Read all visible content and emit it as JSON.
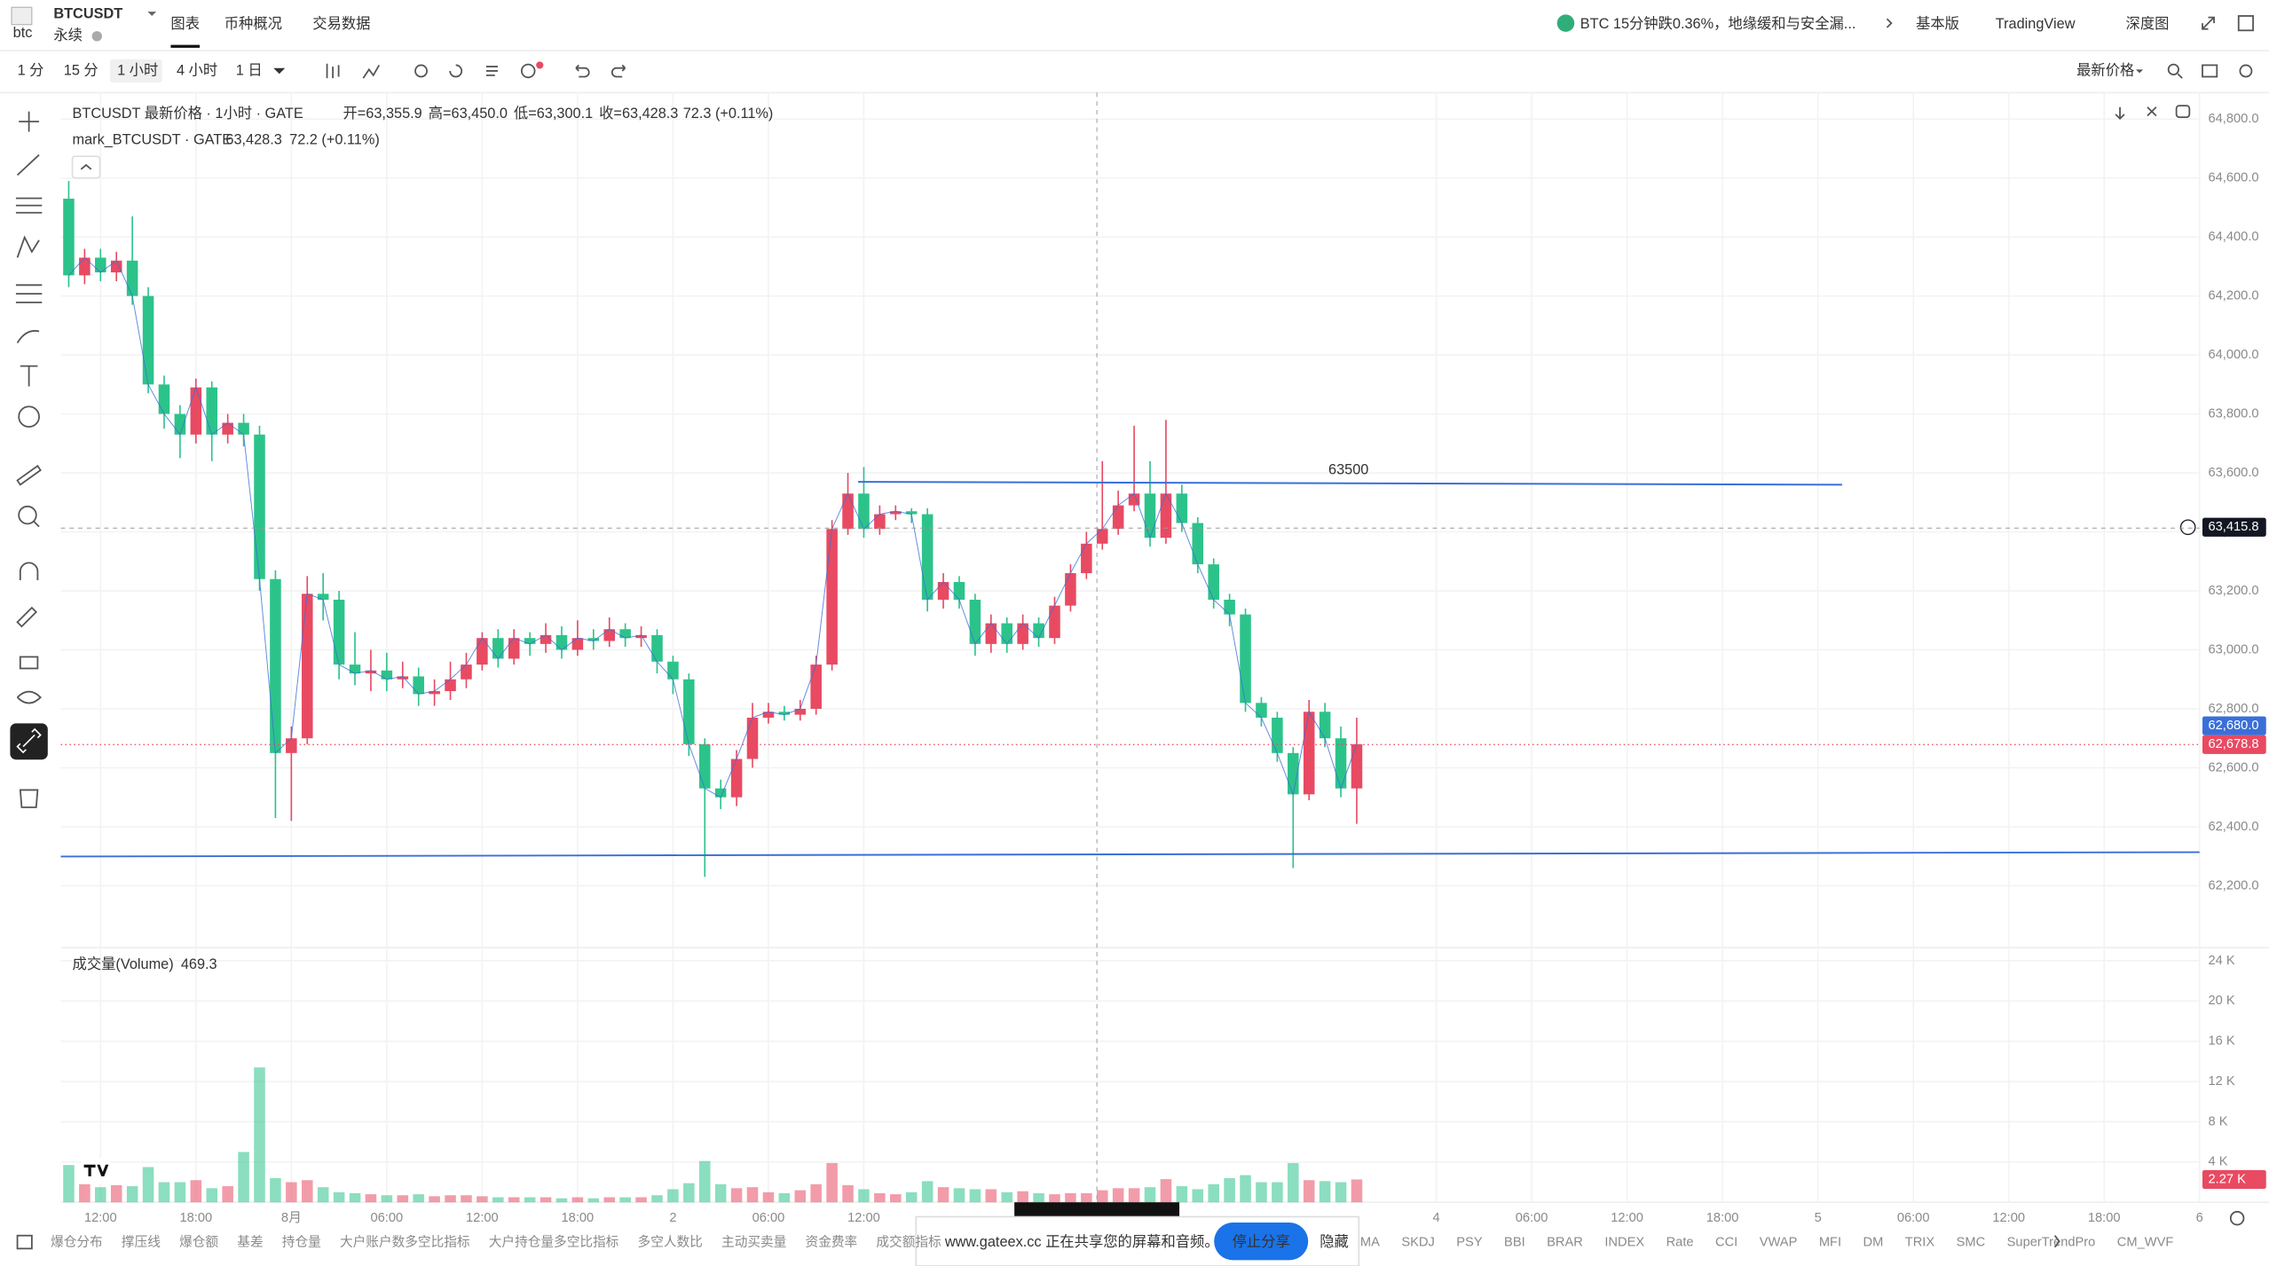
{
  "header": {
    "logo_alt": "btc",
    "symbol": "BTCUSDT",
    "contract": "永续",
    "tabs": [
      "图表",
      "币种概况",
      "交易数据"
    ],
    "news": "BTC 15分钟跌0.36%，地缘缓和与安全漏...",
    "modes": [
      "基本版",
      "TradingView",
      "深度图"
    ]
  },
  "toolbar": {
    "intervals": [
      "1 分",
      "15 分",
      "1 小时",
      "4 小时",
      "1 日"
    ],
    "price_type": "最新价格"
  },
  "legend": {
    "main": "BTCUSDT 最新价格 · 1小时 · GATE",
    "ohlc_texts": [
      "开=63,355.9",
      "高=63,450.0",
      "低=63,300.1",
      "收=63,428.3"
    ],
    "change": "72.3 (+0.11%)",
    "mark": "mark_BTCUSDT · GATE",
    "mark_price": "63,428.3",
    "mark_change": "72.2 (+0.11%)",
    "volume_title": "成交量(Volume)",
    "volume_value": "469.3"
  },
  "annotations": [
    "63500"
  ],
  "chart_data": {
    "type": "candlestick",
    "up_color": "#e84a62",
    "down_color": "#2cc38a",
    "grid": true,
    "xlim": [
      -0.5,
      134
    ],
    "xticks": [
      {
        "value": 2,
        "label": "12:00"
      },
      {
        "value": 8,
        "label": "18:00"
      },
      {
        "value": 14,
        "label": "8月"
      },
      {
        "value": 20,
        "label": "06:00"
      },
      {
        "value": 26,
        "label": "12:00"
      },
      {
        "value": 32,
        "label": "18:00"
      },
      {
        "value": 38,
        "label": "2"
      },
      {
        "value": 44,
        "label": "06:00"
      },
      {
        "value": 50,
        "label": "12:00"
      },
      {
        "value": 86,
        "label": "4"
      },
      {
        "value": 92,
        "label": "06:00"
      },
      {
        "value": 98,
        "label": "12:00"
      },
      {
        "value": 104,
        "label": "18:00"
      },
      {
        "value": 110,
        "label": "5"
      },
      {
        "value": 116,
        "label": "06:00"
      },
      {
        "value": 122,
        "label": "12:00"
      },
      {
        "value": 128,
        "label": "18:00"
      },
      {
        "value": 134,
        "label": "6"
      }
    ],
    "ylim": [
      61990,
      64870
    ],
    "yticks": [
      {
        "value": 62200,
        "label": "62,200.0"
      },
      {
        "value": 62400,
        "label": "62,400.0"
      },
      {
        "value": 62600,
        "label": "62,600.0"
      },
      {
        "value": 62800,
        "label": "62,800.0"
      },
      {
        "value": 63000,
        "label": "63,000.0"
      },
      {
        "value": 63200,
        "label": "63,200.0"
      },
      {
        "value": 63400,
        "label": "63,400.0"
      },
      {
        "value": 63600,
        "label": "63,600.0"
      },
      {
        "value": 63800,
        "label": "63,800.0"
      },
      {
        "value": 64000,
        "label": "64,000.0"
      },
      {
        "value": 64200,
        "label": "64,200.0"
      },
      {
        "value": 64400,
        "label": "64,400.0"
      },
      {
        "value": 64600,
        "label": "64,600.0"
      },
      {
        "value": 64800,
        "label": "64,800.0"
      }
    ],
    "y2lim": [
      0,
      25300
    ],
    "y2ticks": [
      {
        "value": 4000,
        "label": "4 K"
      },
      {
        "value": 8000,
        "label": "8 K"
      },
      {
        "value": 12000,
        "label": "12 K"
      },
      {
        "value": 16000,
        "label": "16 K"
      },
      {
        "value": 20000,
        "label": "20 K"
      },
      {
        "value": 24000,
        "label": "24 K"
      }
    ],
    "crosshair_price": {
      "value": 63415.8,
      "label": "63,415.8"
    },
    "mark_price": {
      "value": 62680.0,
      "label": "62,680.0"
    },
    "last_price": {
      "value": 62678.8,
      "label": "62,678.8"
    },
    "last_volume": {
      "value": 2270,
      "label": "2.27 K"
    },
    "ohlc": [
      [
        64530,
        64590,
        64230,
        64270
      ],
      [
        64270,
        64360,
        64240,
        64330
      ],
      [
        64330,
        64360,
        64250,
        64280
      ],
      [
        64280,
        64350,
        64250,
        64320
      ],
      [
        64320,
        64470,
        64170,
        64200
      ],
      [
        64200,
        64230,
        63870,
        63900
      ],
      [
        63900,
        63930,
        63750,
        63800
      ],
      [
        63800,
        63830,
        63650,
        63730
      ],
      [
        63730,
        63920,
        63700,
        63890
      ],
      [
        63890,
        63910,
        63640,
        63730
      ],
      [
        63730,
        63800,
        63700,
        63770
      ],
      [
        63770,
        63800,
        63690,
        63730
      ],
      [
        63730,
        63760,
        63200,
        63240
      ],
      [
        63240,
        63270,
        62430,
        62650
      ],
      [
        62650,
        62740,
        62420,
        62700
      ],
      [
        62700,
        63250,
        62680,
        63190
      ],
      [
        63190,
        63260,
        63100,
        63170
      ],
      [
        63170,
        63200,
        62900,
        62950
      ],
      [
        62950,
        63060,
        62880,
        62920
      ],
      [
        62920,
        63000,
        62860,
        62930
      ],
      [
        62930,
        62990,
        62860,
        62900
      ],
      [
        62900,
        62960,
        62870,
        62910
      ],
      [
        62910,
        62940,
        62810,
        62850
      ],
      [
        62850,
        62900,
        62810,
        62860
      ],
      [
        62860,
        62960,
        62830,
        62900
      ],
      [
        62900,
        62990,
        62870,
        62950
      ],
      [
        62950,
        63060,
        62930,
        63040
      ],
      [
        63040,
        63070,
        62940,
        62970
      ],
      [
        62970,
        63070,
        62950,
        63040
      ],
      [
        63040,
        63060,
        62980,
        63020
      ],
      [
        63020,
        63090,
        62990,
        63050
      ],
      [
        63050,
        63080,
        62970,
        63000
      ],
      [
        63000,
        63100,
        62980,
        63040
      ],
      [
        63040,
        63070,
        63000,
        63030
      ],
      [
        63030,
        63110,
        63010,
        63070
      ],
      [
        63070,
        63090,
        63010,
        63040
      ],
      [
        63040,
        63080,
        63010,
        63050
      ],
      [
        63050,
        63070,
        62920,
        62960
      ],
      [
        62960,
        62980,
        62850,
        62900
      ],
      [
        62900,
        62920,
        62640,
        62680
      ],
      [
        62680,
        62700,
        62230,
        62530
      ],
      [
        62530,
        62560,
        62460,
        62500
      ],
      [
        62500,
        62660,
        62470,
        62630
      ],
      [
        62630,
        62820,
        62600,
        62770
      ],
      [
        62770,
        62820,
        62750,
        62790
      ],
      [
        62790,
        62810,
        62760,
        62780
      ],
      [
        62780,
        62830,
        62760,
        62800
      ],
      [
        62800,
        62980,
        62780,
        62950
      ],
      [
        62950,
        63440,
        62930,
        63410
      ],
      [
        63410,
        63600,
        63390,
        63530
      ],
      [
        63530,
        63620,
        63380,
        63410
      ],
      [
        63410,
        63490,
        63390,
        63460
      ],
      [
        63460,
        63490,
        63440,
        63470
      ],
      [
        63470,
        63480,
        63430,
        63460
      ],
      [
        63460,
        63480,
        63130,
        63170
      ],
      [
        63170,
        63260,
        63140,
        63230
      ],
      [
        63230,
        63250,
        63140,
        63170
      ],
      [
        63170,
        63190,
        62980,
        63020
      ],
      [
        63020,
        63120,
        62990,
        63090
      ],
      [
        63090,
        63110,
        62990,
        63020
      ],
      [
        63020,
        63120,
        63000,
        63090
      ],
      [
        63090,
        63110,
        63010,
        63040
      ],
      [
        63040,
        63180,
        63020,
        63150
      ],
      [
        63150,
        63290,
        63130,
        63260
      ],
      [
        63260,
        63400,
        63240,
        63360
      ],
      [
        63360,
        63640,
        63340,
        63410
      ],
      [
        63410,
        63540,
        63390,
        63490
      ],
      [
        63490,
        63760,
        63470,
        63530
      ],
      [
        63530,
        63640,
        63350,
        63380
      ],
      [
        63380,
        63780,
        63360,
        63530
      ],
      [
        63530,
        63560,
        63400,
        63430
      ],
      [
        63430,
        63450,
        63260,
        63290
      ],
      [
        63290,
        63310,
        63140,
        63170
      ],
      [
        63170,
        63190,
        63080,
        63120
      ],
      [
        63120,
        63140,
        62790,
        62820
      ],
      [
        62820,
        62840,
        62740,
        62770
      ],
      [
        62770,
        62790,
        62620,
        62650
      ],
      [
        62650,
        62670,
        62260,
        62510
      ],
      [
        62510,
        62830,
        62490,
        62790
      ],
      [
        62790,
        62820,
        62670,
        62700
      ],
      [
        62700,
        62740,
        62500,
        62530
      ],
      [
        62530,
        62770,
        62410,
        62680
      ]
    ],
    "volume": [
      3700,
      1800,
      1500,
      1700,
      1600,
      3500,
      2000,
      2000,
      2200,
      1400,
      1600,
      5000,
      13400,
      2400,
      2000,
      2200,
      1500,
      1000,
      900,
      800,
      700,
      700,
      800,
      600,
      700,
      700,
      600,
      500,
      500,
      500,
      500,
      400,
      500,
      400,
      500,
      500,
      500,
      700,
      1300,
      1900,
      4100,
      1800,
      1400,
      1500,
      1000,
      900,
      1200,
      1800,
      3900,
      1700,
      1300,
      900,
      800,
      1000,
      2100,
      1500,
      1400,
      1300,
      1300,
      1000,
      1100,
      900,
      800,
      900,
      900,
      1200,
      1400,
      1400,
      1500,
      2300,
      1600,
      1300,
      1800,
      2400,
      2700,
      2000,
      2000,
      3900,
      2200,
      2100,
      2000,
      2270
    ]
  },
  "indicators": {
    "left": [
      "爆仓分布",
      "撑压线",
      "爆仓额",
      "基差",
      "持仓量",
      "大户账户数多空比指标",
      "大户持仓量多空比指标",
      "多空人数比",
      "主动买卖量",
      "资金费率",
      "成交额指标"
    ],
    "right": [
      "MA",
      "SKDJ",
      "PSY",
      "BBI",
      "BRAR",
      "INDEX",
      "Rate",
      "CCI",
      "VWAP",
      "MFI",
      "DM",
      "TRIX",
      "SMC",
      "SuperTrendPro",
      "CM_WVF"
    ]
  },
  "share_bar": {
    "message": "www.gateex.cc 正在共享您的屏幕和音频。",
    "stop": "停止分享",
    "hide": "隐藏"
  }
}
